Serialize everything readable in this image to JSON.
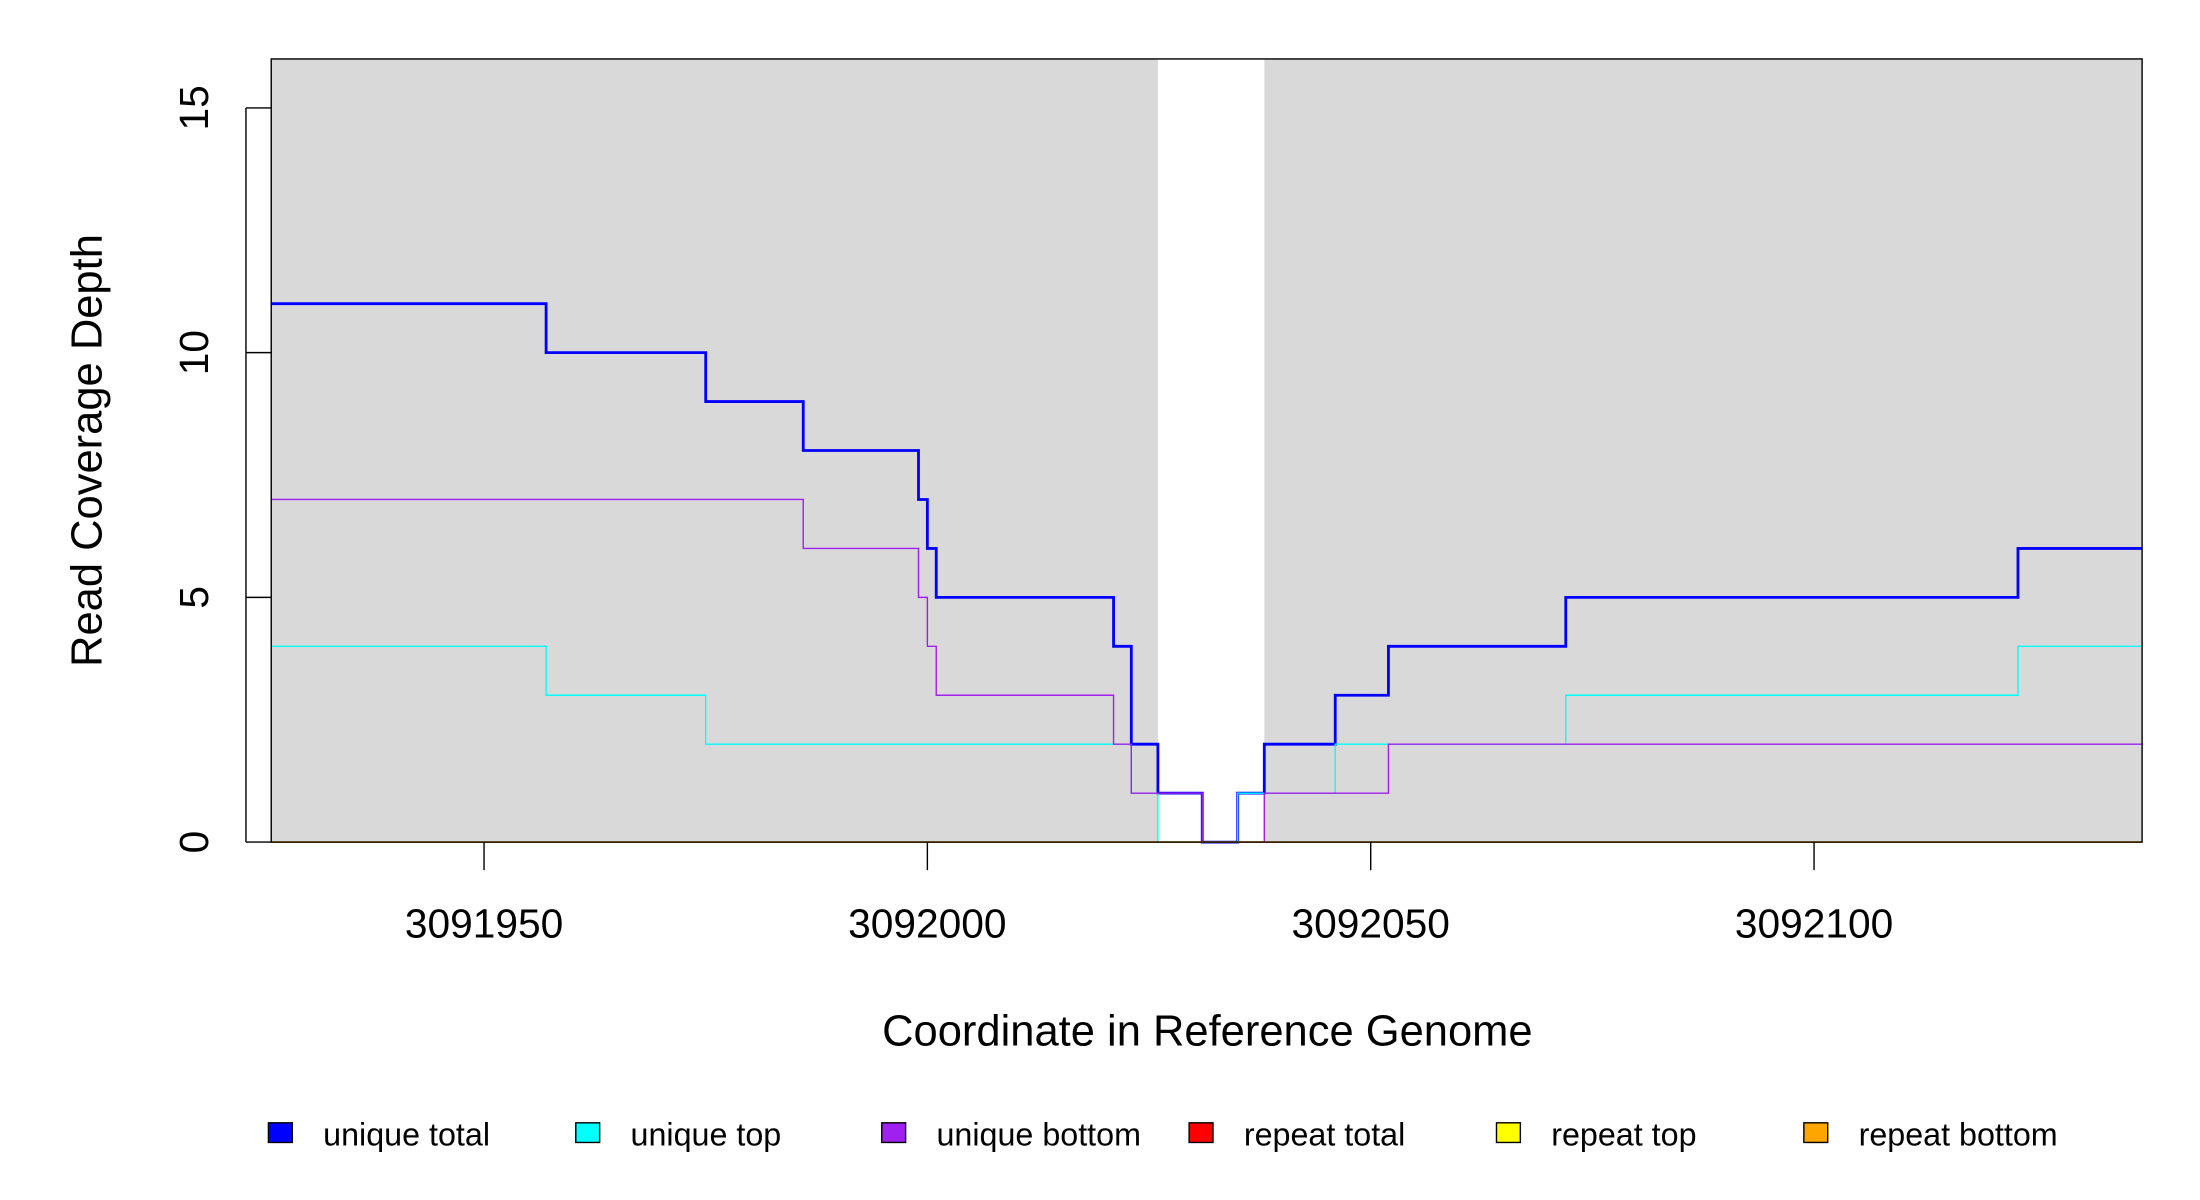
{
  "chart_data": {
    "type": "line",
    "step": true,
    "xlabel": "Coordinate in Reference Genome",
    "ylabel": "Read Coverage Depth",
    "xlim": [
      3091926,
      3092137
    ],
    "ylim": [
      0,
      16
    ],
    "x_ticks": [
      3091950,
      3092000,
      3092050,
      3092100
    ],
    "x_tick_labels": [
      "3091950",
      "3092000",
      "3092050",
      "3092100"
    ],
    "y_ticks": [
      0,
      5,
      10,
      15
    ],
    "y_tick_labels": [
      "0",
      "5",
      "10",
      "15"
    ],
    "background_color": "#d9d9d9",
    "highlight_region": {
      "x": [
        3092026,
        3092038
      ],
      "color": "#ffffff"
    },
    "grid": false,
    "legend_position": "bottom",
    "series": [
      {
        "name": "unique total",
        "color": "#0000ff",
        "steps": [
          [
            3091926,
            11
          ],
          [
            3091957,
            10
          ],
          [
            3091975,
            9
          ],
          [
            3091986,
            8
          ],
          [
            3091999,
            7
          ],
          [
            3092000,
            6
          ],
          [
            3092001,
            5
          ],
          [
            3092021,
            4
          ],
          [
            3092023,
            2
          ],
          [
            3092026,
            1
          ],
          [
            3092031,
            0
          ],
          [
            3092035,
            1
          ],
          [
            3092038,
            2
          ],
          [
            3092046,
            3
          ],
          [
            3092052,
            4
          ],
          [
            3092072,
            5
          ],
          [
            3092123,
            6
          ]
        ]
      },
      {
        "name": "unique top",
        "color": "#00ffff",
        "steps": [
          [
            3091926,
            4
          ],
          [
            3091957,
            3
          ],
          [
            3091975,
            2
          ],
          [
            3092023,
            1
          ],
          [
            3092026,
            0
          ],
          [
            3092035,
            1
          ],
          [
            3092046,
            2
          ],
          [
            3092072,
            3
          ],
          [
            3092123,
            4
          ]
        ]
      },
      {
        "name": "unique bottom",
        "color": "#a020f0",
        "steps": [
          [
            3091926,
            7
          ],
          [
            3091986,
            6
          ],
          [
            3091999,
            5
          ],
          [
            3092000,
            4
          ],
          [
            3092001,
            3
          ],
          [
            3092021,
            2
          ],
          [
            3092023,
            1
          ],
          [
            3092031,
            0
          ],
          [
            3092038,
            1
          ],
          [
            3092052,
            2
          ]
        ]
      },
      {
        "name": "repeat total",
        "color": "#ff0000",
        "steps": [
          [
            3091926,
            0
          ]
        ]
      },
      {
        "name": "repeat top",
        "color": "#ffff00",
        "steps": [
          [
            3091926,
            0
          ]
        ]
      },
      {
        "name": "repeat bottom",
        "color": "#ffa500",
        "steps": [
          [
            3091926,
            0
          ]
        ]
      }
    ]
  }
}
